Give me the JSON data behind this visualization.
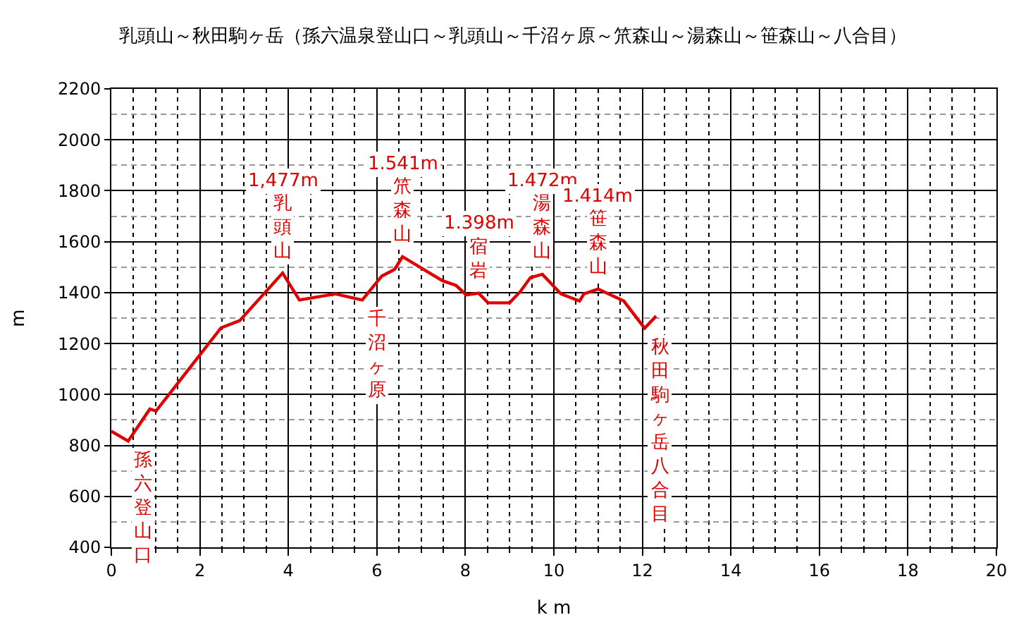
{
  "chart_data": {
    "type": "line",
    "title": "乳頭山～秋田駒ヶ岳（孫六温泉登山口～乳頭山～千沼ヶ原～笊森山～湯森山～笹森山～八合目）",
    "xlabel": "k m",
    "ylabel": "m",
    "x": [
      0,
      0.38,
      0.87,
      1.01,
      2.48,
      2.9,
      3.87,
      4.25,
      5.06,
      5.67,
      6.11,
      6.4,
      6.58,
      7.06,
      7.48,
      7.79,
      8.02,
      8.3,
      8.51,
      9.0,
      9.24,
      9.47,
      9.74,
      10.16,
      10.58,
      10.68,
      11.0,
      11.58,
      12.05,
      12.31
    ],
    "series": [
      {
        "color": "#e00000",
        "values": [
          856,
          817,
          943,
          935,
          1262,
          1290,
          1477,
          1371,
          1395,
          1371,
          1465,
          1491,
          1541,
          1491,
          1447,
          1428,
          1391,
          1398,
          1360,
          1360,
          1404,
          1459,
          1472,
          1395,
          1367,
          1395,
          1414,
          1367,
          1260,
          1308
        ]
      }
    ],
    "xlim": [
      0,
      20
    ],
    "ylim": [
      400,
      2200
    ],
    "xticks": [
      0,
      2,
      4,
      6,
      8,
      10,
      12,
      14,
      16,
      18,
      20
    ],
    "yticks": [
      400,
      600,
      800,
      1000,
      1200,
      1400,
      1600,
      1800,
      2000,
      2200
    ],
    "grid": true,
    "marker": "none",
    "line_style": "solid",
    "annotations": [
      {
        "text": "孫六登山口",
        "x": 0.38,
        "y": 817
      },
      {
        "text": "乳頭山",
        "x": 3.87,
        "y": 1477
      },
      "1,477m",
      {
        "text": "千沼ヶ原",
        "x": 5.67,
        "y": 1371
      },
      {
        "text": "笊森山",
        "x": 6.58,
        "y": 1541
      },
      "1.541m",
      {
        "text": "宿岩",
        "x": 8.3,
        "y": 1398
      },
      "1.398m",
      {
        "text": "湯森山",
        "x": 9.74,
        "y": 1472
      },
      "1.472m",
      {
        "text": "笹森山",
        "x": 11.0,
        "y": 1414
      },
      "1.414m",
      {
        "text": "秋田駒ヶ岳八合目",
        "x": 12.05,
        "y": 1260
      }
    ]
  }
}
